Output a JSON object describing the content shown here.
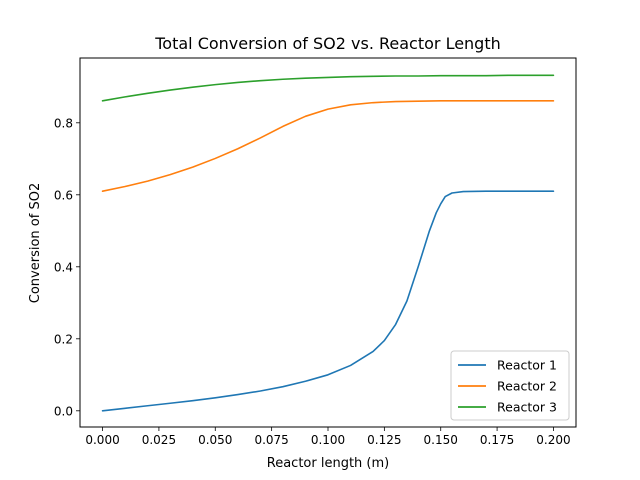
{
  "chart_data": {
    "type": "line",
    "title": "Total Conversion of SO2 vs. Reactor Length",
    "xlabel": "Reactor length (m)",
    "ylabel": "Conversion of SO2",
    "xlim": [
      -0.01,
      0.21
    ],
    "ylim": [
      -0.045,
      0.98
    ],
    "xticks": [
      "0.000",
      "0.025",
      "0.050",
      "0.075",
      "0.100",
      "0.125",
      "0.150",
      "0.175",
      "0.200"
    ],
    "yticks": [
      "0.0",
      "0.2",
      "0.4",
      "0.6",
      "0.8"
    ],
    "grid": false,
    "legend_position": "lower-right",
    "series": [
      {
        "name": "Reactor 1",
        "color": "#1f77b4",
        "x": [
          0.0,
          0.01,
          0.02,
          0.03,
          0.04,
          0.05,
          0.06,
          0.07,
          0.08,
          0.09,
          0.1,
          0.11,
          0.12,
          0.125,
          0.13,
          0.135,
          0.14,
          0.145,
          0.148,
          0.15,
          0.152,
          0.155,
          0.16,
          0.17,
          0.18,
          0.19,
          0.2
        ],
        "y": [
          0.0,
          0.007,
          0.014,
          0.021,
          0.028,
          0.036,
          0.045,
          0.055,
          0.067,
          0.082,
          0.1,
          0.126,
          0.165,
          0.195,
          0.24,
          0.305,
          0.4,
          0.5,
          0.55,
          0.575,
          0.595,
          0.605,
          0.609,
          0.61,
          0.61,
          0.61,
          0.61
        ]
      },
      {
        "name": "Reactor 2",
        "color": "#ff7f0e",
        "x": [
          0.0,
          0.01,
          0.02,
          0.03,
          0.04,
          0.05,
          0.06,
          0.07,
          0.08,
          0.09,
          0.1,
          0.11,
          0.12,
          0.13,
          0.14,
          0.15,
          0.16,
          0.17,
          0.18,
          0.19,
          0.2
        ],
        "y": [
          0.61,
          0.623,
          0.638,
          0.656,
          0.677,
          0.701,
          0.728,
          0.758,
          0.79,
          0.818,
          0.838,
          0.85,
          0.856,
          0.859,
          0.86,
          0.861,
          0.861,
          0.861,
          0.861,
          0.861,
          0.861
        ]
      },
      {
        "name": "Reactor 3",
        "color": "#2ca02c",
        "x": [
          0.0,
          0.01,
          0.02,
          0.03,
          0.04,
          0.05,
          0.06,
          0.07,
          0.08,
          0.09,
          0.1,
          0.11,
          0.12,
          0.13,
          0.14,
          0.15,
          0.16,
          0.17,
          0.18,
          0.19,
          0.2
        ],
        "y": [
          0.861,
          0.872,
          0.882,
          0.891,
          0.899,
          0.906,
          0.912,
          0.917,
          0.921,
          0.924,
          0.926,
          0.928,
          0.929,
          0.93,
          0.93,
          0.931,
          0.931,
          0.931,
          0.932,
          0.932,
          0.932
        ]
      }
    ]
  }
}
